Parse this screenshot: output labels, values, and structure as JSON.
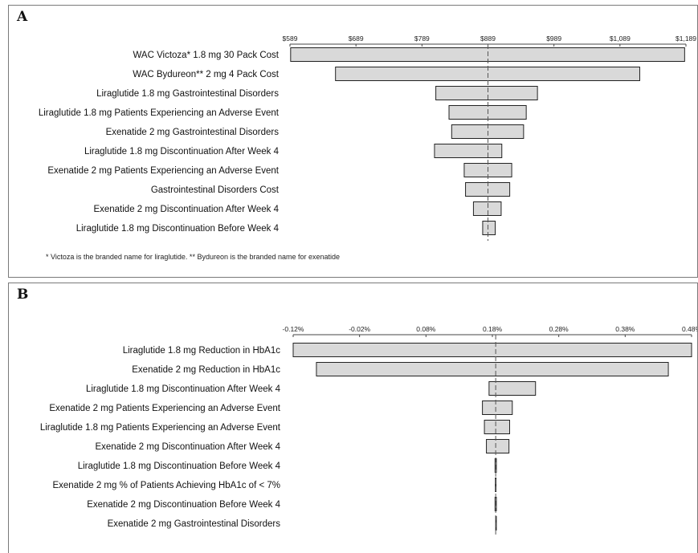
{
  "footnote": "* Victoza is the branded name for liraglutide. ** Bydureon is the branded name for exenatide",
  "chart_data": [
    {
      "panel": "A",
      "type": "tornado",
      "baseline": 889,
      "xlim": [
        589,
        1189
      ],
      "ticks": [
        589,
        689,
        789,
        889,
        989,
        1089,
        1189
      ],
      "tick_labels": [
        "$589",
        "$689",
        "$789",
        "$889",
        "$989",
        "$1,089",
        "$1,189"
      ],
      "categories": [
        "WAC Victoza* 1.8 mg 30 Pack Cost",
        "WAC Bydureon** 2 mg 4 Pack Cost",
        "Liraglutide 1.8 mg Gastrointestinal Disorders",
        "Liraglutide 1.8 mg Patients Experiencing an Adverse Event",
        "Exenatide 2 mg Gastrointestinal Disorders",
        "Liraglutide 1.8 mg Discontinuation After Week 4",
        "Exenatide 2 mg Patients Experiencing an Adverse Event",
        "Gastrointestinal Disorders Cost",
        "Exenatide 2 mg Discontinuation After Week 4",
        "Liraglutide 1.8 mg Discontinuation Before Week 4"
      ],
      "low": [
        590,
        658,
        810,
        830,
        834,
        808,
        853,
        855,
        867,
        881
      ],
      "high": [
        1187,
        1119,
        964,
        947,
        943,
        910,
        925,
        922,
        909,
        900
      ]
    },
    {
      "panel": "B",
      "type": "tornado",
      "baseline": 0.185,
      "xlim": [
        -0.12,
        0.48
      ],
      "ticks": [
        -0.12,
        -0.02,
        0.08,
        0.18,
        0.28,
        0.38,
        0.48
      ],
      "tick_labels": [
        "-0.12%",
        "-0.02%",
        "0.08%",
        "0.18%",
        "0.28%",
        "0.38%",
        "0.48%"
      ],
      "categories": [
        "Liraglutide 1.8 mg Reduction in HbA1c",
        "Exenatide 2 mg Reduction in HbA1c",
        "Liraglutide 1.8 mg Discontinuation After Week 4",
        "Exenatide 2 mg Patients Experiencing an Adverse Event",
        "Liraglutide 1.8 mg Patients Experiencing an Adverse Event",
        "Exenatide 2 mg Discontinuation After Week 4",
        "Liraglutide 1.8 mg Discontinuation Before Week 4",
        "Exenatide 2 mg % of Patients Achieving  HbA1c of < 7%",
        "Exenatide 2 mg Discontinuation Before Week 4",
        "Exenatide 2 mg Gastrointestinal Disorders"
      ],
      "low": [
        -0.12,
        -0.085,
        0.175,
        0.165,
        0.168,
        0.171,
        0.184,
        0.1845,
        0.184,
        0.185
      ],
      "high": [
        0.48,
        0.445,
        0.245,
        0.21,
        0.206,
        0.205,
        0.186,
        0.1855,
        0.186,
        0.185
      ]
    }
  ]
}
